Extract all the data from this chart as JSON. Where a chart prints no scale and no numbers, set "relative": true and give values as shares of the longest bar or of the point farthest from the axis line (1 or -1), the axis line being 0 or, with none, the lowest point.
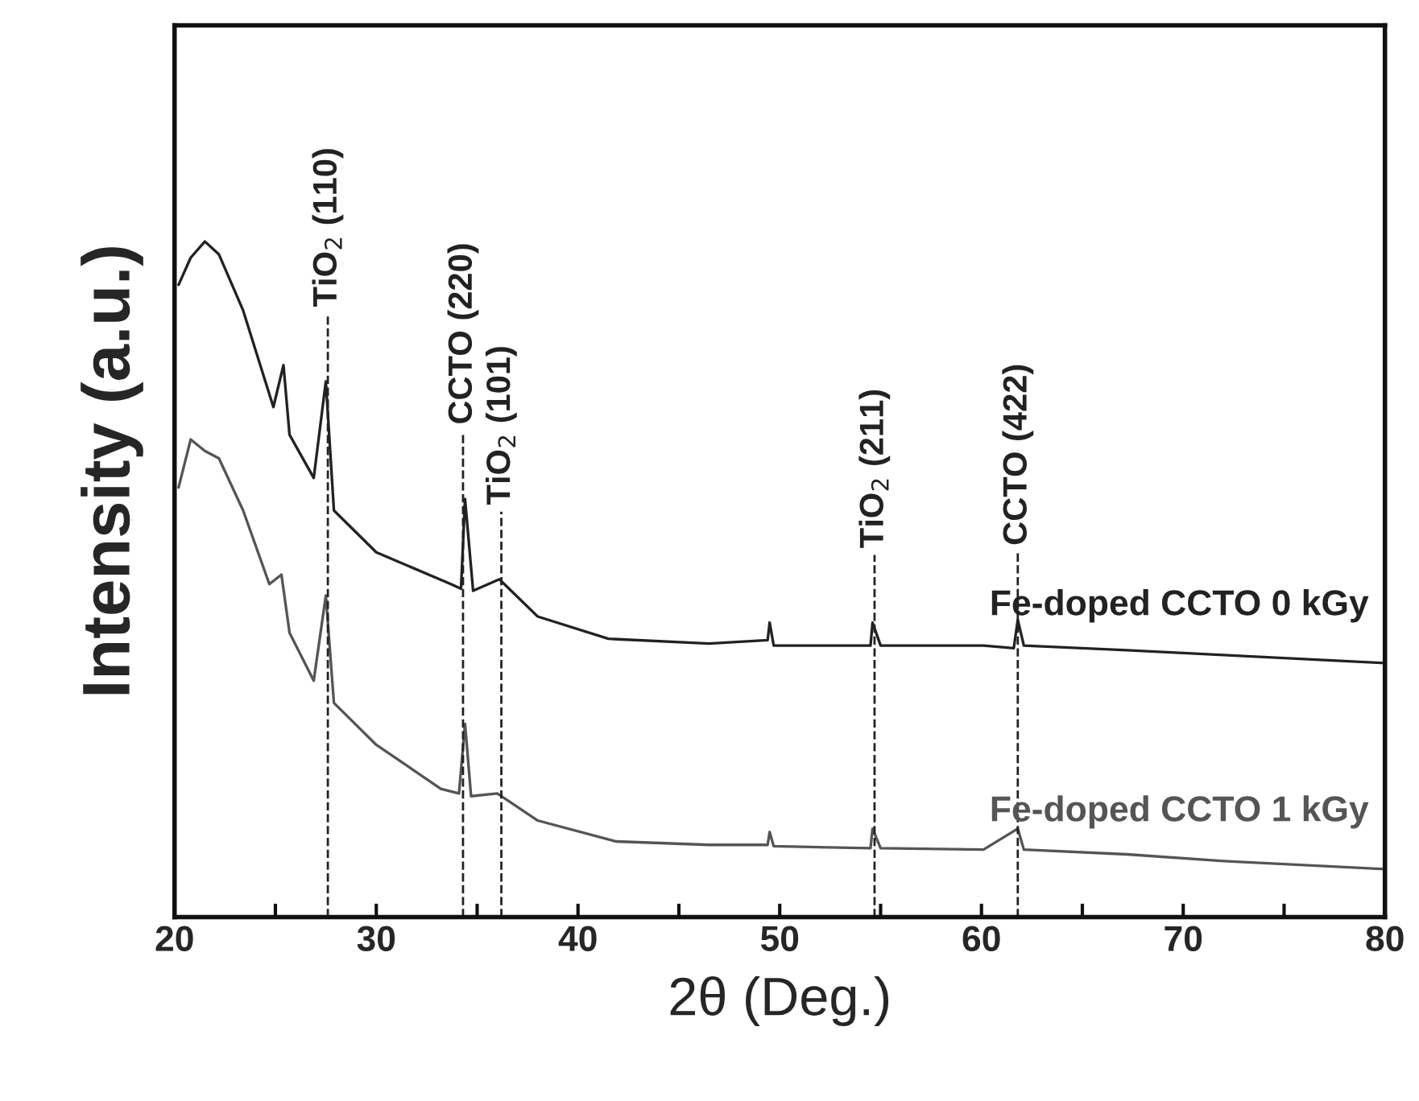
{
  "chart_data": {
    "type": "line",
    "relative": true,
    "xlabel": "2θ (Deg.)",
    "ylabel": "Intensity (a.u.)",
    "xlim": [
      20,
      80
    ],
    "xticks": [
      20,
      {
        "value": 25,
        "label": null
      },
      30,
      {
        "value": 35,
        "label": null
      },
      40,
      {
        "value": 45,
        "label": null
      },
      50,
      {
        "value": 55,
        "label": null
      },
      60,
      {
        "value": 65,
        "label": null
      },
      70,
      {
        "value": 75,
        "label": null
      },
      80
    ],
    "grid": false,
    "legend": false,
    "marker": "none",
    "line_style": "solid",
    "series": [
      {
        "name": "Fe-doped CCTO 0 kGy",
        "color": "#222222",
        "x": [
          20.2,
          20.8,
          21.5,
          22.2,
          23.4,
          24.9,
          25.4,
          25.7,
          26.9,
          27.5,
          27.9,
          30.0,
          33.7,
          34.2,
          34.4,
          34.8,
          36.1,
          38.0,
          41.5,
          46.5,
          49.4,
          49.5,
          49.7,
          54.5,
          54.6,
          55.0,
          60.1,
          61.6,
          61.8,
          62.1,
          67.2,
          72.0,
          80.0
        ],
        "values": [
          0.936,
          0.976,
          1.0,
          0.981,
          0.898,
          0.755,
          0.817,
          0.714,
          0.65,
          0.793,
          0.602,
          0.54,
          0.493,
          0.486,
          0.619,
          0.483,
          0.5,
          0.445,
          0.412,
          0.405,
          0.41,
          0.436,
          0.402,
          0.402,
          0.436,
          0.402,
          0.402,
          0.398,
          0.44,
          0.402,
          0.395,
          0.388,
          0.376
        ]
      },
      {
        "name": "Fe-doped CCTO 1 kGy",
        "color": "#555555",
        "x": [
          20.2,
          20.8,
          21.5,
          22.2,
          23.4,
          24.7,
          25.3,
          25.7,
          26.9,
          27.5,
          27.9,
          30.0,
          33.2,
          34.1,
          34.4,
          34.7,
          36.0,
          38.0,
          41.9,
          46.5,
          49.4,
          49.5,
          49.7,
          54.5,
          54.6,
          55.0,
          60.1,
          61.8,
          62.1,
          67.2,
          72.0,
          80.0
        ],
        "values": [
          0.636,
          0.707,
          0.69,
          0.679,
          0.602,
          0.493,
          0.507,
          0.421,
          0.35,
          0.476,
          0.317,
          0.255,
          0.19,
          0.183,
          0.286,
          0.179,
          0.183,
          0.143,
          0.112,
          0.107,
          0.107,
          0.126,
          0.105,
          0.102,
          0.131,
          0.102,
          0.1,
          0.131,
          0.1,
          0.093,
          0.083,
          0.071
        ]
      }
    ],
    "ref_lines": [
      {
        "axis": "x",
        "value": 27.6,
        "label": "TiO$_{2}$ (110)",
        "line_style": "dashed",
        "color": "#222222"
      },
      {
        "axis": "x",
        "value": 34.3,
        "label": "CCTO (220)",
        "line_style": "dashed",
        "color": "#222222"
      },
      {
        "axis": "x",
        "value": 36.2,
        "label": "TiO$_{2}$ (101)",
        "line_style": "dashed",
        "color": "#222222"
      },
      {
        "axis": "x",
        "value": 54.7,
        "label": "TiO$_{2}$ (211)",
        "line_style": "dashed",
        "color": "#222222"
      },
      {
        "axis": "x",
        "value": 61.8,
        "label": "CCTO (422)",
        "line_style": "dashed",
        "color": "#222222"
      }
    ]
  }
}
